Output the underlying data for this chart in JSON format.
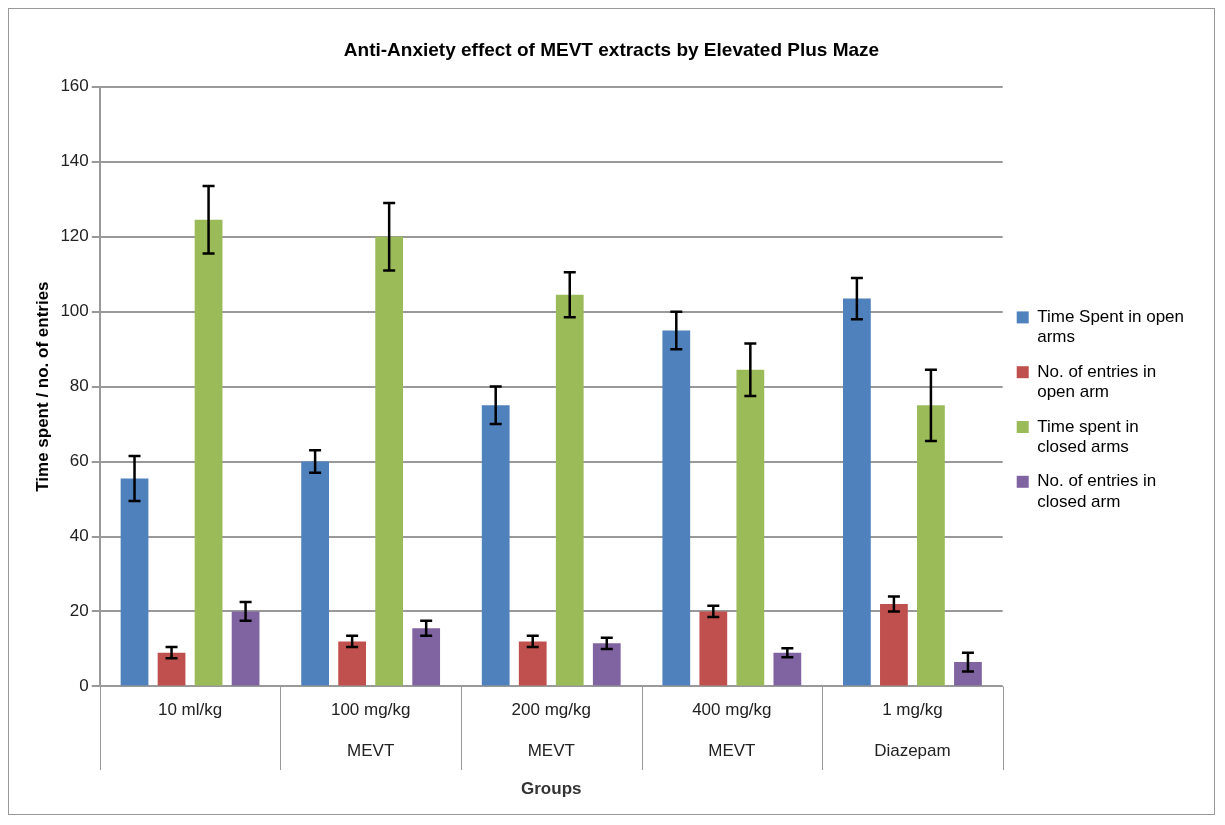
{
  "chart_data": {
    "type": "bar",
    "title": "Anti-Anxiety effect of MEVT extracts by Elevated Plus Maze",
    "xlabel": "Groups",
    "ylabel": "Time spent / no. of entries",
    "categories": [
      "10 ml/kg",
      "100 mg/kg\nMEVT",
      "200 mg/kg\nMEVT",
      "400 mg/kg\nMEVT",
      "1 mg/kg\nDiazepam"
    ],
    "series": [
      {
        "name": "Time Spent in open arms",
        "color": "#4f81bd",
        "values": [
          55.5,
          60,
          75,
          95,
          103.5
        ],
        "errors": [
          6,
          3,
          5,
          5,
          5.5
        ]
      },
      {
        "name": "No. of entries in open arm",
        "color": "#c0504d",
        "values": [
          9,
          12,
          12,
          20,
          22
        ],
        "errors": [
          1.5,
          1.5,
          1.5,
          1.5,
          2
        ]
      },
      {
        "name": "Time spent in closed arms",
        "color": "#9bbb59",
        "values": [
          124.5,
          120,
          104.5,
          84.5,
          75
        ],
        "errors": [
          9,
          9,
          6,
          7,
          9.5
        ]
      },
      {
        "name": "No. of entries in closed arm",
        "color": "#8064a2",
        "values": [
          20,
          15.5,
          11.5,
          9,
          6.5
        ],
        "errors": [
          2.5,
          2,
          1.5,
          1.2,
          2.5
        ]
      }
    ],
    "ylim": [
      0,
      160
    ],
    "yticks": [
      0,
      20,
      40,
      60,
      80,
      100,
      120,
      140,
      160
    ],
    "grid": "y",
    "legend": "right"
  }
}
